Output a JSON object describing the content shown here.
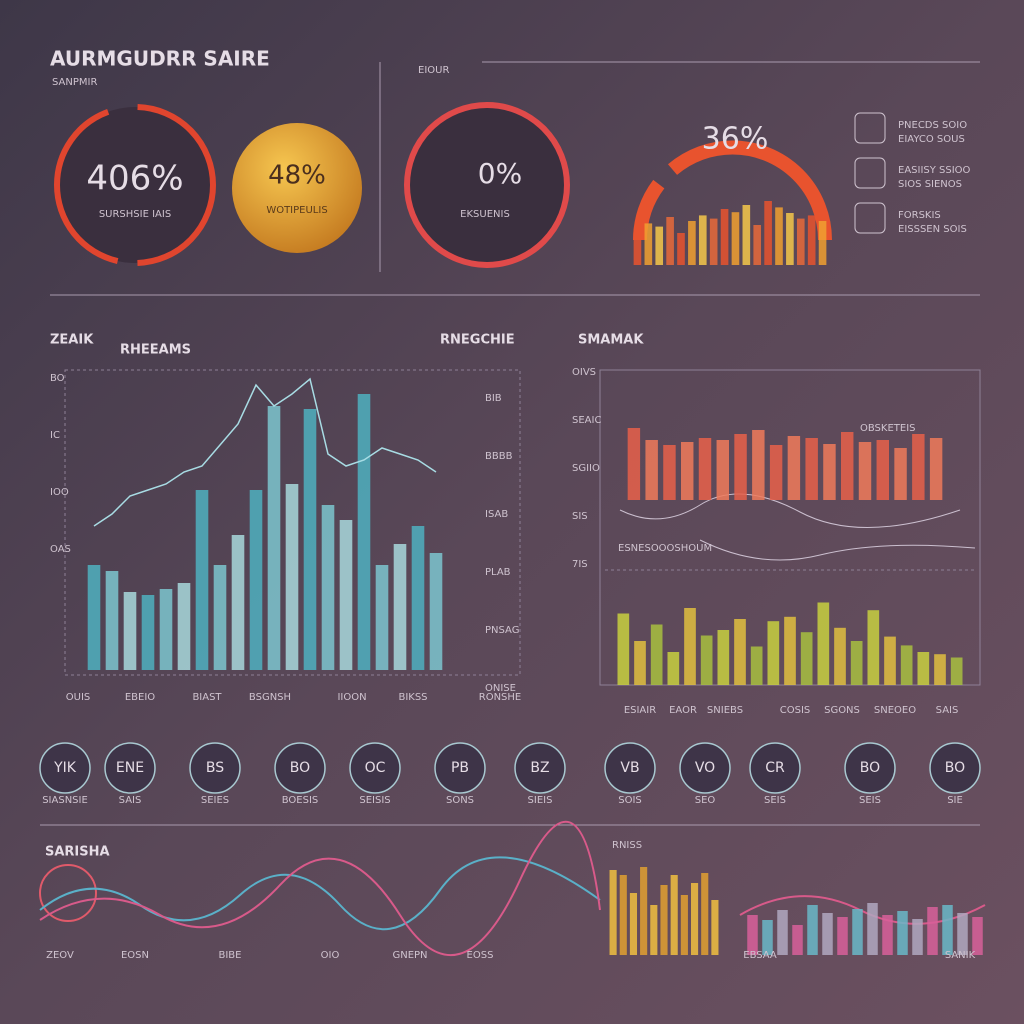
{
  "header": {
    "title": "AURMGUDRR SAIRE",
    "subtitle": "SANPMIR"
  },
  "top_panel_label": "EIOUR",
  "gauges": [
    {
      "value": "406%",
      "label": "SURSHSIE IAIS"
    },
    {
      "value": "48%",
      "label": "WOTIPEULIS"
    },
    {
      "value": "0%",
      "label": "EKSUENIS"
    },
    {
      "value": "36%"
    }
  ],
  "gauge_bars": [
    45,
    52,
    48,
    60,
    40,
    55,
    62,
    58,
    70,
    66,
    75,
    50,
    80,
    72,
    65,
    58,
    62,
    55
  ],
  "legend": [
    {
      "title": "PNECDS SOIO",
      "sub": "EIAYCO SOUS"
    },
    {
      "title": "EASIISY SSIOO",
      "sub": "SIOS SIENOS"
    },
    {
      "title": "FORSKIS",
      "sub": "EISSSEN SOIS"
    }
  ],
  "main_chart": {
    "title": "ZEAIK",
    "subtitle": "RHEEAMS",
    "side_title": "RNEGCHIE",
    "ylim": [
      0,
      100
    ],
    "bars": [
      35,
      33,
      26,
      25,
      27,
      29,
      60,
      35,
      45,
      60,
      88,
      62,
      87,
      55,
      50,
      92,
      35,
      42,
      48,
      39
    ],
    "line": [
      48,
      52,
      58,
      60,
      62,
      66,
      68,
      75,
      82,
      95,
      88,
      92,
      97,
      72,
      68,
      70,
      74,
      72,
      70,
      66
    ],
    "y_labels": [
      "BO",
      "IC",
      "IOO",
      "OAS"
    ],
    "side_labels": [
      "BIB",
      "BBBB",
      "ISAB",
      "PLAB",
      "PNSAG",
      "ONISE"
    ],
    "x_labels": [
      "OUIS",
      "EBEIO",
      "BIAST",
      "BSGNSH",
      "IIOON",
      "BIKSS",
      "RONSHE"
    ]
  },
  "side_chart": {
    "title": "SMAMAK",
    "note": "OBSKETEIS",
    "mid_note": "ESNESOOOSHOUM",
    "ylim": [
      0,
      100
    ],
    "red_bars": [
      72,
      60,
      55,
      58,
      62,
      60,
      66,
      70,
      55,
      64,
      62,
      56,
      68,
      58,
      60,
      52,
      66,
      62
    ],
    "yellow_bars": [
      65,
      40,
      55,
      30,
      70,
      45,
      50,
      60,
      35,
      58,
      62,
      48,
      75,
      52,
      40,
      68,
      44,
      36,
      30,
      28,
      25
    ],
    "y_labels": [
      "OIVS",
      "SEAIC",
      "SGIIO",
      "SIS",
      "7IS"
    ],
    "x_labels": [
      "ESIAIR",
      "EAOR",
      "SNIEBS",
      "COSIS",
      "SGONS",
      "SNEOEO",
      "SAIS"
    ]
  },
  "icons": [
    {
      "text": "YIK",
      "label": "SIASNSIE"
    },
    {
      "text": "ENE",
      "label": "SAIS"
    },
    {
      "text": "BS",
      "label": "SEIES"
    },
    {
      "text": "BO",
      "label": "BOESIS"
    },
    {
      "text": "OC",
      "label": "SEISIS"
    },
    {
      "text": "PB",
      "label": "SONS"
    },
    {
      "text": "BZ",
      "label": "SIEIS"
    },
    {
      "text": "VB",
      "label": "SOIS"
    },
    {
      "text": "VO",
      "label": "SEO"
    },
    {
      "text": "CR",
      "label": "SEIS"
    },
    {
      "text": "BO",
      "label": "SEIS"
    },
    {
      "text": "BO",
      "label": "SIE"
    }
  ],
  "bottom": {
    "title": "SARISHA",
    "side_title": "RNISS",
    "yellow_bars": [
      85,
      80,
      62,
      88,
      50,
      70,
      80,
      60,
      72,
      82,
      55
    ],
    "right_bars": [
      40,
      35,
      45,
      30,
      50,
      42,
      38,
      46,
      52,
      40,
      44,
      36,
      48,
      50,
      42,
      38
    ],
    "labels": [
      "ZEOV",
      "EOSN",
      "BIBE",
      "OIO",
      "GNEPN",
      "EOSS",
      "EBSAA",
      "SANIK"
    ]
  }
}
